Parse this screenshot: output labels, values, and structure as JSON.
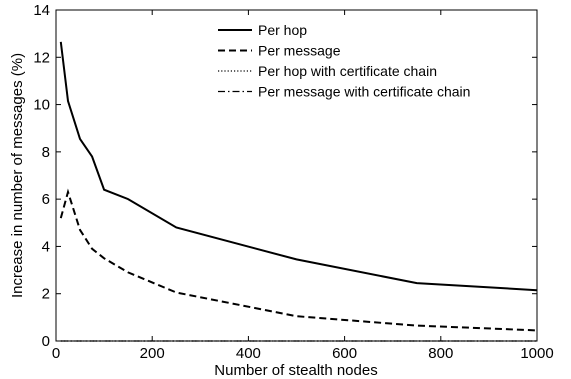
{
  "chart_data": {
    "type": "line",
    "xlabel": "Number of stealth nodes",
    "ylabel": "Increase in number of messages (%)",
    "xlim": [
      0,
      1000
    ],
    "ylim": [
      0,
      14
    ],
    "xticks": [
      0,
      200,
      400,
      600,
      800,
      1000
    ],
    "yticks": [
      0,
      2,
      4,
      6,
      8,
      10,
      12,
      14
    ],
    "grid": false,
    "legend_position": "top-right",
    "series": [
      {
        "name": "Per hop",
        "style": "solid",
        "color": "#000000",
        "x": [
          10,
          25,
          50,
          75,
          100,
          150,
          250,
          500,
          750,
          1000
        ],
        "y": [
          12.65,
          10.15,
          8.55,
          7.8,
          6.4,
          6.0,
          4.8,
          3.45,
          2.45,
          2.15
        ]
      },
      {
        "name": "Per message",
        "style": "dashed",
        "color": "#000000",
        "x": [
          10,
          25,
          50,
          75,
          100,
          150,
          250,
          500,
          750,
          1000
        ],
        "y": [
          5.2,
          6.3,
          4.7,
          3.9,
          3.5,
          2.9,
          2.05,
          1.05,
          0.65,
          0.45
        ]
      },
      {
        "name": "Per hop with certificate chain",
        "style": "dotted",
        "color": "#000000",
        "x": [
          10,
          25,
          50,
          75,
          100,
          150,
          250,
          500,
          750,
          1000
        ],
        "y": [
          0,
          0,
          0,
          0,
          0,
          0,
          0,
          0,
          0,
          0
        ]
      },
      {
        "name": "Per message with certificate chain",
        "style": "dashdot",
        "color": "#000000",
        "x": [
          10,
          25,
          50,
          75,
          100,
          150,
          250,
          500,
          750,
          1000
        ],
        "y": [
          0,
          0,
          0,
          0,
          0,
          0,
          0,
          0,
          0,
          0
        ]
      }
    ]
  }
}
